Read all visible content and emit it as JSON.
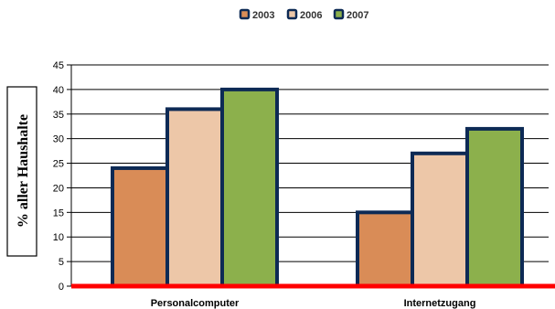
{
  "chart_data": {
    "type": "bar",
    "title": "",
    "xlabel": "",
    "ylabel": "% aller Haushalte",
    "categories": [
      "Personalcomputer",
      "Internetzugang"
    ],
    "series": [
      {
        "name": "2003",
        "values": [
          24,
          15
        ],
        "color": "#d98c57"
      },
      {
        "name": "2006",
        "values": [
          36,
          27
        ],
        "color": "#edc7a8"
      },
      {
        "name": "2007",
        "values": [
          40,
          32
        ],
        "color": "#8cb04c"
      }
    ],
    "ylim": [
      0,
      45
    ],
    "yticks": [
      0,
      5,
      10,
      15,
      20,
      25,
      30,
      35,
      40,
      45
    ],
    "grid": true,
    "legend_position": "top",
    "colors": {
      "bar_border": "#0d2a55",
      "baseline": "#ff0000",
      "grid": "#000000"
    }
  }
}
